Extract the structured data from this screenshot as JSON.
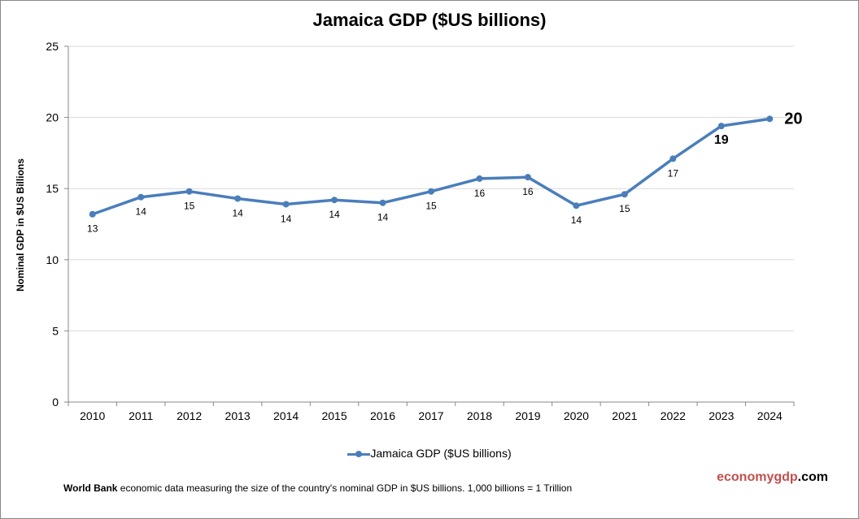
{
  "chart_data": {
    "type": "line",
    "title": "Jamaica GDP ($US billions)",
    "ylabel": "Nominal GDP in $US  Billions",
    "xlabel": "",
    "ylim": [
      0,
      25
    ],
    "yticks": [
      0,
      5,
      10,
      15,
      20,
      25
    ],
    "grid": true,
    "legend_placement": "bottom",
    "categories": [
      "2010",
      "2011",
      "2012",
      "2013",
      "2014",
      "2015",
      "2016",
      "2017",
      "2018",
      "2019",
      "2020",
      "2021",
      "2022",
      "2023",
      "2024"
    ],
    "series": [
      {
        "name": "Jamaica GDP ($US billions)",
        "color": "#4a7ebb",
        "values": [
          13.2,
          14.4,
          14.8,
          14.3,
          13.9,
          14.2,
          14.0,
          14.8,
          15.7,
          15.8,
          13.8,
          14.6,
          17.1,
          19.4,
          19.9
        ],
        "data_labels": [
          "13",
          "14",
          "15",
          "14",
          "14",
          "14",
          "14",
          "15",
          "16",
          "16",
          "14",
          "15",
          "17",
          "19",
          "20"
        ]
      }
    ]
  },
  "footer": {
    "source_bold": "World Bank",
    "source_text": " economic data  measuring the size of the country's nominal  GDP in $US billions. 1,000 billions = 1 Trillion"
  },
  "brand": {
    "main": "economygdp",
    "suffix": ".com",
    "color": "#c0504d"
  }
}
